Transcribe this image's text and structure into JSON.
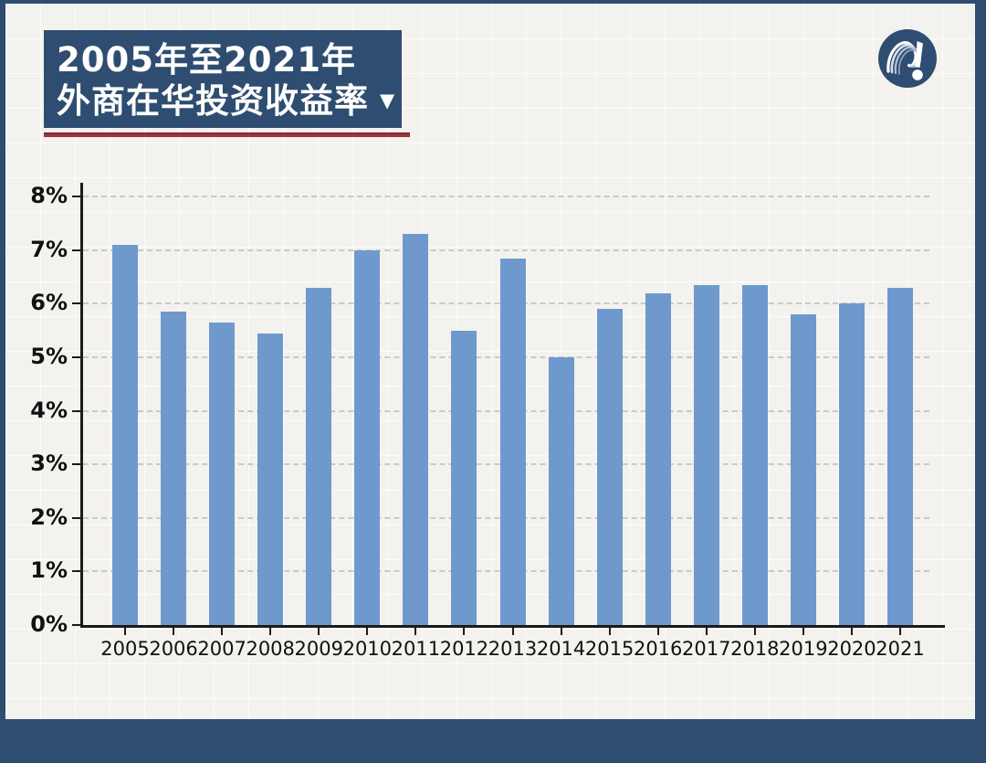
{
  "header": {
    "line1": "2005年至2021年",
    "line2": "外商在华投资收益率",
    "arrow": "▼"
  },
  "colors": {
    "navy": "#2e4d70",
    "underline_red": "#9c343a",
    "bar_blue": "#6f99cd",
    "axis_black": "#1b1b1b",
    "grid_dash_gray": "#c9c9c9",
    "panel_background": "#f3f2ee"
  },
  "logo": {
    "icon": "swoosh-exclamation-logo"
  },
  "chart_data": {
    "type": "bar",
    "title": "2005年至2021年外商在华投资收益率",
    "categories": [
      "2005",
      "2006",
      "2007",
      "2008",
      "2009",
      "2010",
      "2011",
      "2012",
      "2013",
      "2014",
      "2015",
      "2016",
      "2017",
      "2018",
      "2019",
      "2020",
      "2021"
    ],
    "values": [
      7.1,
      5.85,
      5.65,
      5.45,
      6.3,
      7.0,
      7.3,
      5.5,
      6.85,
      5.0,
      5.9,
      6.2,
      6.35,
      6.35,
      5.8,
      6.0,
      6.3
    ],
    "xlabel": "",
    "ylabel": "",
    "ylim": [
      0,
      8
    ],
    "ytick_labels": [
      "0%",
      "1%",
      "2%",
      "3%",
      "4%",
      "5%",
      "6%",
      "7%",
      "8%"
    ],
    "grid": "horizontal-dashed",
    "legend": "none",
    "bar_color": "#6f99cd"
  }
}
